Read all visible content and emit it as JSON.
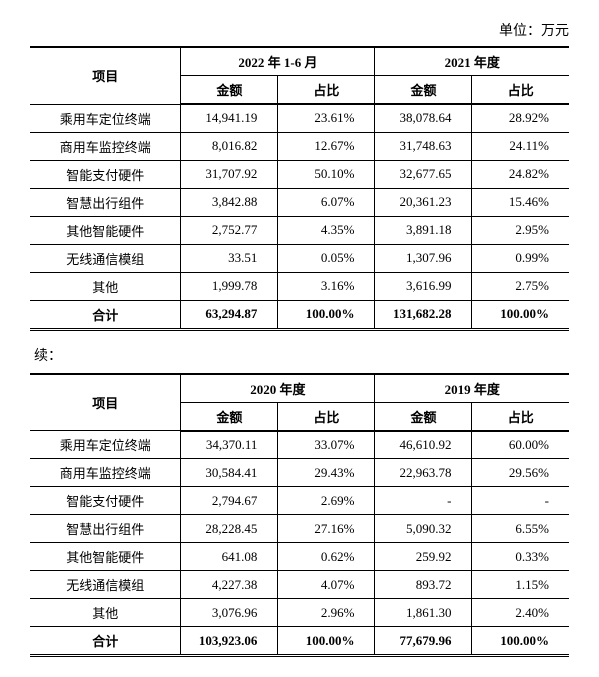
{
  "unit_label": "单位：万元",
  "continuation_label": "续：",
  "headers": {
    "item": "项目",
    "amount": "金额",
    "ratio": "占比"
  },
  "table1": {
    "period1": "2022 年 1-6 月",
    "period2": "2021 年度",
    "rows": [
      {
        "name": "乘用车定位终端",
        "a1": "14,941.19",
        "r1": "23.61%",
        "a2": "38,078.64",
        "r2": "28.92%"
      },
      {
        "name": "商用车监控终端",
        "a1": "8,016.82",
        "r1": "12.67%",
        "a2": "31,748.63",
        "r2": "24.11%"
      },
      {
        "name": "智能支付硬件",
        "a1": "31,707.92",
        "r1": "50.10%",
        "a2": "32,677.65",
        "r2": "24.82%"
      },
      {
        "name": "智慧出行组件",
        "a1": "3,842.88",
        "r1": "6.07%",
        "a2": "20,361.23",
        "r2": "15.46%"
      },
      {
        "name": "其他智能硬件",
        "a1": "2,752.77",
        "r1": "4.35%",
        "a2": "3,891.18",
        "r2": "2.95%"
      },
      {
        "name": "无线通信模组",
        "a1": "33.51",
        "r1": "0.05%",
        "a2": "1,307.96",
        "r2": "0.99%"
      },
      {
        "name": "其他",
        "a1": "1,999.78",
        "r1": "3.16%",
        "a2": "3,616.99",
        "r2": "2.75%"
      }
    ],
    "total": {
      "name": "合计",
      "a1": "63,294.87",
      "r1": "100.00%",
      "a2": "131,682.28",
      "r2": "100.00%"
    }
  },
  "table2": {
    "period1": "2020 年度",
    "period2": "2019 年度",
    "rows": [
      {
        "name": "乘用车定位终端",
        "a1": "34,370.11",
        "r1": "33.07%",
        "a2": "46,610.92",
        "r2": "60.00%"
      },
      {
        "name": "商用车监控终端",
        "a1": "30,584.41",
        "r1": "29.43%",
        "a2": "22,963.78",
        "r2": "29.56%"
      },
      {
        "name": "智能支付硬件",
        "a1": "2,794.67",
        "r1": "2.69%",
        "a2": "-",
        "r2": "-"
      },
      {
        "name": "智慧出行组件",
        "a1": "28,228.45",
        "r1": "27.16%",
        "a2": "5,090.32",
        "r2": "6.55%"
      },
      {
        "name": "其他智能硬件",
        "a1": "641.08",
        "r1": "0.62%",
        "a2": "259.92",
        "r2": "0.33%"
      },
      {
        "name": "无线通信模组",
        "a1": "4,227.38",
        "r1": "4.07%",
        "a2": "893.72",
        "r2": "1.15%"
      },
      {
        "name": "其他",
        "a1": "3,076.96",
        "r1": "2.96%",
        "a2": "1,861.30",
        "r2": "2.40%"
      }
    ],
    "total": {
      "name": "合计",
      "a1": "103,923.06",
      "r1": "100.00%",
      "a2": "77,679.96",
      "r2": "100.00%"
    }
  }
}
